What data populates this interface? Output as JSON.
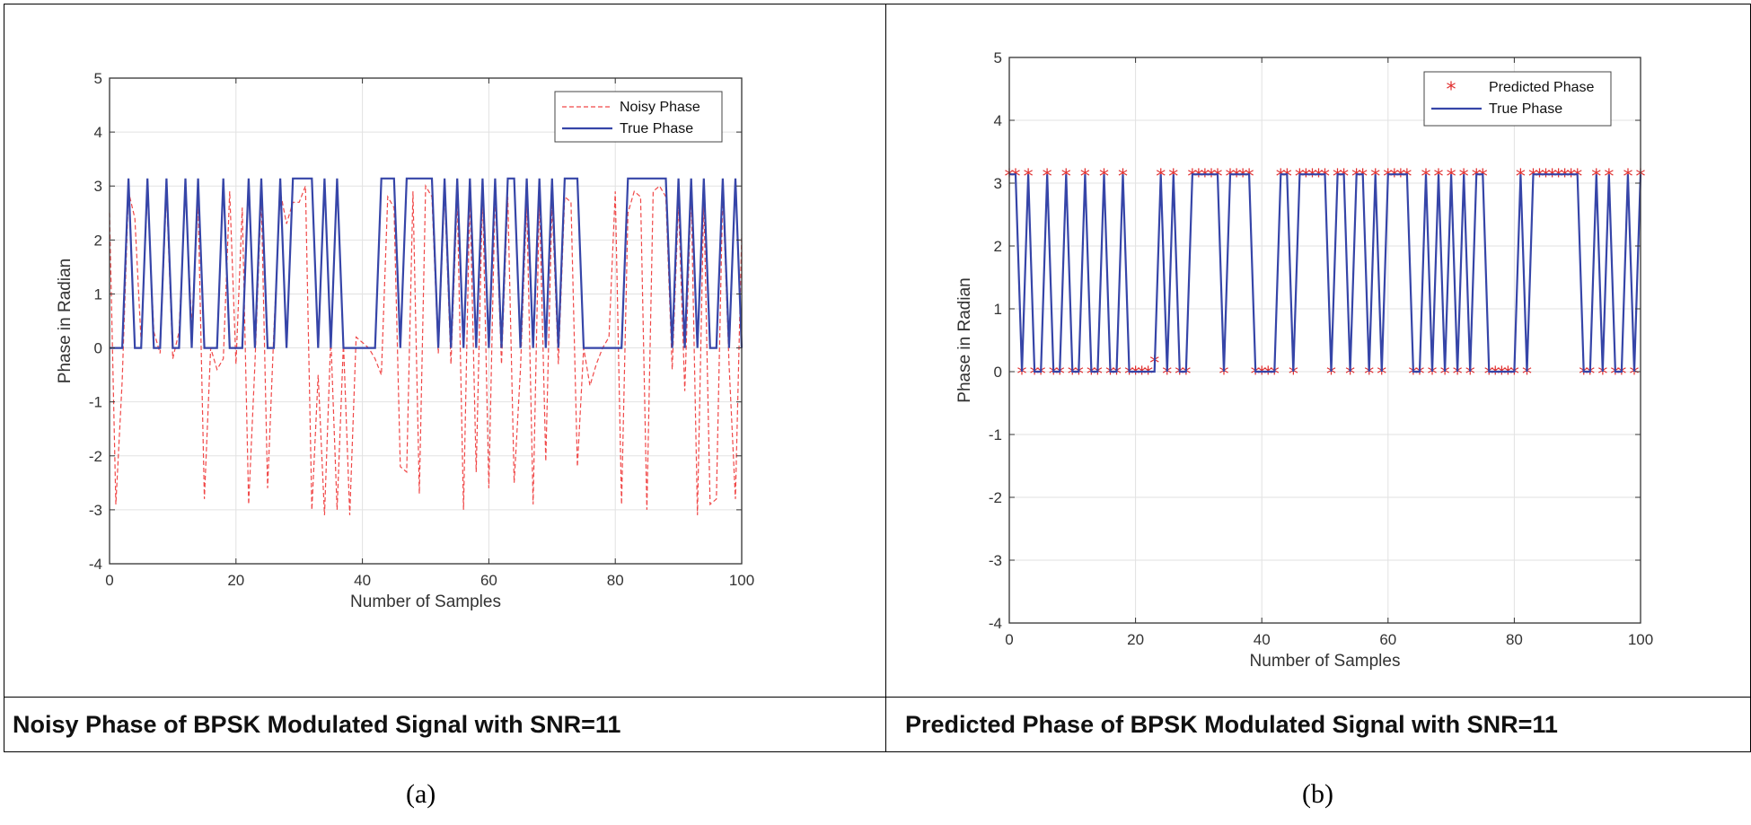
{
  "chart_data": [
    {
      "type": "line",
      "panel": "a",
      "caption": "Noisy Phase of BPSK Modulated Signal with SNR=11",
      "sublabel": "(a)",
      "xlabel": "Number of Samples",
      "ylabel": "Phase in Radian",
      "xlim": [
        0,
        100
      ],
      "ylim": [
        -4,
        5
      ],
      "xticks": [
        "0",
        "20",
        "40",
        "60",
        "80",
        "100"
      ],
      "yticks": [
        "-4",
        "-3",
        "-2",
        "-1",
        "0",
        "1",
        "2",
        "3",
        "4",
        "5"
      ],
      "grid": true,
      "legend_position": "top-right",
      "series": [
        {
          "name": "Noisy Phase",
          "style": "dashed",
          "color": "#f04848",
          "values": [
            2.5,
            -2.9,
            -0.6,
            2.9,
            2.4,
            0.1,
            2.9,
            0.3,
            -0.1,
            2.9,
            -0.2,
            0.3,
            3.0,
            0.4,
            2.7,
            -2.8,
            0.0,
            -0.4,
            -0.2,
            2.9,
            -0.3,
            2.6,
            -2.9,
            -0.3,
            2.8,
            -2.6,
            0.3,
            2.9,
            2.3,
            2.7,
            2.7,
            3.0,
            -3.0,
            -0.5,
            -3.1,
            0.2,
            -3.0,
            0.1,
            -3.1,
            0.2,
            0.1,
            0.0,
            -0.2,
            -0.5,
            2.8,
            2.6,
            -2.2,
            -2.3,
            2.9,
            -2.7,
            3.0,
            2.8,
            -0.1,
            2.9,
            -0.3,
            2.8,
            -3.0,
            2.9,
            -2.3,
            2.9,
            -2.6,
            2.9,
            -0.3,
            2.8,
            -2.5,
            -0.4,
            2.7,
            -2.9,
            2.8,
            -2.1,
            2.7,
            -0.3,
            2.8,
            2.7,
            -2.2,
            0.0,
            -0.7,
            -0.3,
            0.0,
            0.2,
            2.9,
            -2.9,
            2.5,
            2.9,
            2.8,
            -3.0,
            2.9,
            3.0,
            2.8,
            -0.4,
            2.7,
            -0.8,
            2.9,
            -3.1,
            2.8,
            -2.9,
            -2.8,
            2.9,
            -0.3,
            -2.8,
            2.1
          ]
        },
        {
          "name": "True Phase",
          "style": "solid",
          "color": "#3645a8",
          "values": [
            0,
            0,
            0,
            3.14,
            0,
            0,
            3.14,
            0,
            0,
            3.14,
            0,
            0,
            3.14,
            0,
            3.14,
            0,
            0,
            0,
            3.14,
            0,
            0,
            0,
            3.14,
            0,
            3.14,
            0,
            0,
            3.14,
            0,
            3.14,
            3.14,
            3.14,
            3.14,
            0,
            3.14,
            0,
            3.14,
            0,
            0,
            0,
            0,
            0,
            0,
            3.14,
            3.14,
            3.14,
            0,
            3.14,
            3.14,
            3.14,
            3.14,
            3.14,
            0,
            3.14,
            0,
            3.14,
            0,
            3.14,
            0,
            3.14,
            0,
            3.14,
            0,
            3.14,
            3.14,
            0,
            3.14,
            0,
            3.14,
            0,
            3.14,
            0,
            3.14,
            3.14,
            3.14,
            0,
            0,
            0,
            0,
            0,
            0,
            0,
            3.14,
            3.14,
            3.14,
            3.14,
            3.14,
            3.14,
            3.14,
            0,
            3.14,
            0,
            3.14,
            0,
            3.14,
            0,
            0,
            3.14,
            0,
            3.14,
            0
          ]
        }
      ]
    },
    {
      "type": "line",
      "panel": "b",
      "caption": "Predicted Phase of BPSK Modulated Signal with SNR=11",
      "sublabel": "(b)",
      "xlabel": "Number of Samples",
      "ylabel": "Phase in Radian",
      "xlim": [
        0,
        100
      ],
      "ylim": [
        -4,
        5
      ],
      "xticks": [
        "0",
        "20",
        "40",
        "60",
        "80",
        "100"
      ],
      "yticks": [
        "-4",
        "-3",
        "-2",
        "-1",
        "0",
        "1",
        "2",
        "3",
        "4",
        "5"
      ],
      "grid": true,
      "legend_position": "top-right",
      "series": [
        {
          "name": "Predicted Phase",
          "style": "markers",
          "marker": "*",
          "color": "#e03030",
          "values": [
            3.14,
            3.14,
            0,
            3.14,
            0,
            0,
            3.14,
            0,
            0,
            3.14,
            0,
            0,
            3.14,
            0,
            0,
            3.14,
            0,
            0,
            3.14,
            0,
            0,
            0,
            0,
            0.17,
            3.14,
            0,
            3.14,
            0,
            0,
            3.14,
            3.14,
            3.14,
            3.14,
            3.14,
            0,
            3.14,
            3.14,
            3.14,
            3.14,
            0,
            0,
            0,
            0,
            3.14,
            3.14,
            0,
            3.14,
            3.14,
            3.14,
            3.14,
            3.14,
            0,
            3.14,
            3.14,
            0,
            3.14,
            3.14,
            0,
            3.14,
            0,
            3.14,
            3.14,
            3.14,
            3.14,
            0,
            0,
            3.14,
            0,
            3.14,
            0,
            3.14,
            0,
            3.14,
            0,
            3.14,
            3.14,
            0,
            0,
            0,
            0,
            0,
            3.14,
            0,
            3.14,
            3.14,
            3.14,
            3.14,
            3.14,
            3.14,
            3.14,
            3.14,
            0,
            0,
            3.14,
            0,
            3.14,
            0,
            0,
            3.14,
            0,
            3.14
          ]
        },
        {
          "name": "True Phase",
          "style": "solid",
          "color": "#3645a8",
          "values": [
            3.14,
            3.14,
            0,
            3.14,
            0,
            0,
            3.14,
            0,
            0,
            3.14,
            0,
            0,
            3.14,
            0,
            0,
            3.14,
            0,
            0,
            3.14,
            0,
            0,
            0,
            0,
            0,
            3.14,
            0,
            3.14,
            0,
            0,
            3.14,
            3.14,
            3.14,
            3.14,
            3.14,
            0,
            3.14,
            3.14,
            3.14,
            3.14,
            0,
            0,
            0,
            0,
            3.14,
            3.14,
            0,
            3.14,
            3.14,
            3.14,
            3.14,
            3.14,
            0,
            3.14,
            3.14,
            0,
            3.14,
            3.14,
            0,
            3.14,
            0,
            3.14,
            3.14,
            3.14,
            3.14,
            0,
            0,
            3.14,
            0,
            3.14,
            0,
            3.14,
            0,
            3.14,
            0,
            3.14,
            3.14,
            0,
            0,
            0,
            0,
            0,
            3.14,
            0,
            3.14,
            3.14,
            3.14,
            3.14,
            3.14,
            3.14,
            3.14,
            3.14,
            0,
            0,
            3.14,
            0,
            3.14,
            0,
            0,
            3.14,
            0,
            3.14
          ]
        }
      ]
    }
  ]
}
